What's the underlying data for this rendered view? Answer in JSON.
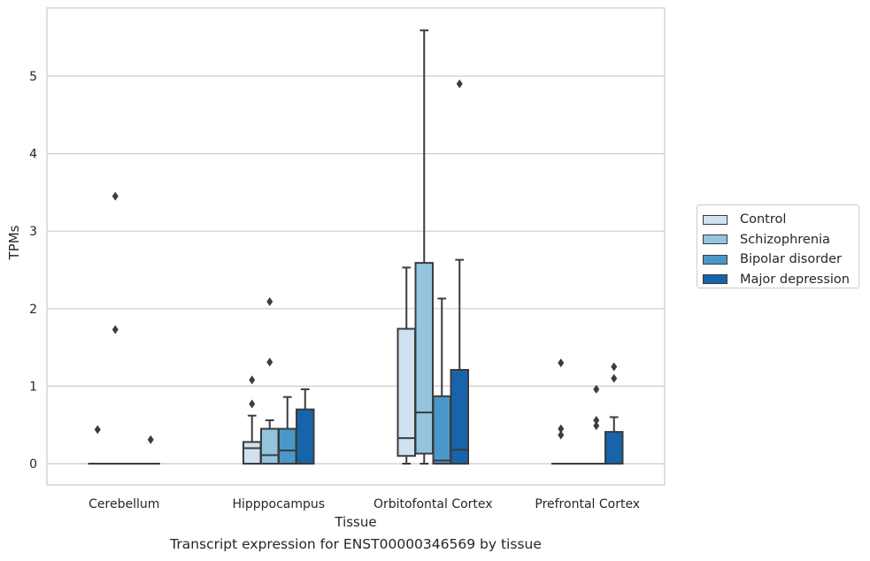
{
  "caption": "Transcript expression for ENST00000346569 by tissue",
  "chart_data": {
    "type": "boxplot",
    "xlabel": "Tissue",
    "ylabel": "TPMs",
    "ylim": [
      -0.27,
      5.88
    ],
    "yticks": [
      0,
      1,
      2,
      3,
      4,
      5
    ],
    "grid": "horizontal",
    "legend_position": "right",
    "categories": [
      "Cerebellum",
      "Hipppocampus",
      "Orbitofontal Cortex",
      "Prefrontal Cortex"
    ],
    "series": [
      {
        "name": "Control",
        "color": "#d0e1f2",
        "boxes": [
          {
            "whislo": 0,
            "q1": 0,
            "med": 0,
            "q3": 0,
            "whishi": 0,
            "fliers": [
              0.44
            ]
          },
          {
            "whislo": 0,
            "q1": 0,
            "med": 0.2,
            "q3": 0.28,
            "whishi": 0.62,
            "fliers": [
              0.77,
              1.08
            ]
          },
          {
            "whislo": 0,
            "q1": 0.1,
            "med": 0.33,
            "q3": 1.74,
            "whishi": 2.53,
            "fliers": []
          },
          {
            "whislo": 0,
            "q1": 0,
            "med": 0,
            "q3": 0,
            "whishi": 0,
            "fliers": [
              0.37,
              0.45,
              1.3
            ]
          }
        ]
      },
      {
        "name": "Schizophrenia",
        "color": "#94c4df",
        "boxes": [
          {
            "whislo": 0,
            "q1": 0,
            "med": 0,
            "q3": 0,
            "whishi": 0,
            "fliers": [
              1.73,
              3.45
            ]
          },
          {
            "whislo": 0,
            "q1": 0,
            "med": 0.11,
            "q3": 0.45,
            "whishi": 0.56,
            "fliers": [
              1.31,
              2.09
            ]
          },
          {
            "whislo": 0,
            "q1": 0.13,
            "med": 0.66,
            "q3": 2.59,
            "whishi": 5.59,
            "fliers": []
          },
          {
            "whislo": 0,
            "q1": 0,
            "med": 0,
            "q3": 0,
            "whishi": 0,
            "fliers": []
          }
        ]
      },
      {
        "name": "Bipolar disorder",
        "color": "#4a98c9",
        "boxes": [
          {
            "whislo": 0,
            "q1": 0,
            "med": 0,
            "q3": 0,
            "whishi": 0,
            "fliers": []
          },
          {
            "whislo": 0,
            "q1": 0,
            "med": 0.17,
            "q3": 0.45,
            "whishi": 0.86,
            "fliers": []
          },
          {
            "whislo": 0,
            "q1": 0,
            "med": 0.04,
            "q3": 0.87,
            "whishi": 2.13,
            "fliers": []
          },
          {
            "whislo": 0,
            "q1": 0,
            "med": 0,
            "q3": 0,
            "whishi": 0,
            "fliers": [
              0.49,
              0.56,
              0.96
            ]
          }
        ]
      },
      {
        "name": "Major depression",
        "color": "#1764ab",
        "boxes": [
          {
            "whislo": 0,
            "q1": 0,
            "med": 0,
            "q3": 0,
            "whishi": 0,
            "fliers": [
              0.31
            ]
          },
          {
            "whislo": 0,
            "q1": 0,
            "med": 0,
            "q3": 0.7,
            "whishi": 0.96,
            "fliers": []
          },
          {
            "whislo": 0,
            "q1": 0,
            "med": 0.18,
            "q3": 1.21,
            "whishi": 2.63,
            "fliers": [
              4.9
            ]
          },
          {
            "whislo": 0,
            "q1": 0,
            "med": 0,
            "q3": 0.41,
            "whishi": 0.6,
            "fliers": [
              1.1,
              1.25
            ]
          }
        ]
      }
    ]
  }
}
